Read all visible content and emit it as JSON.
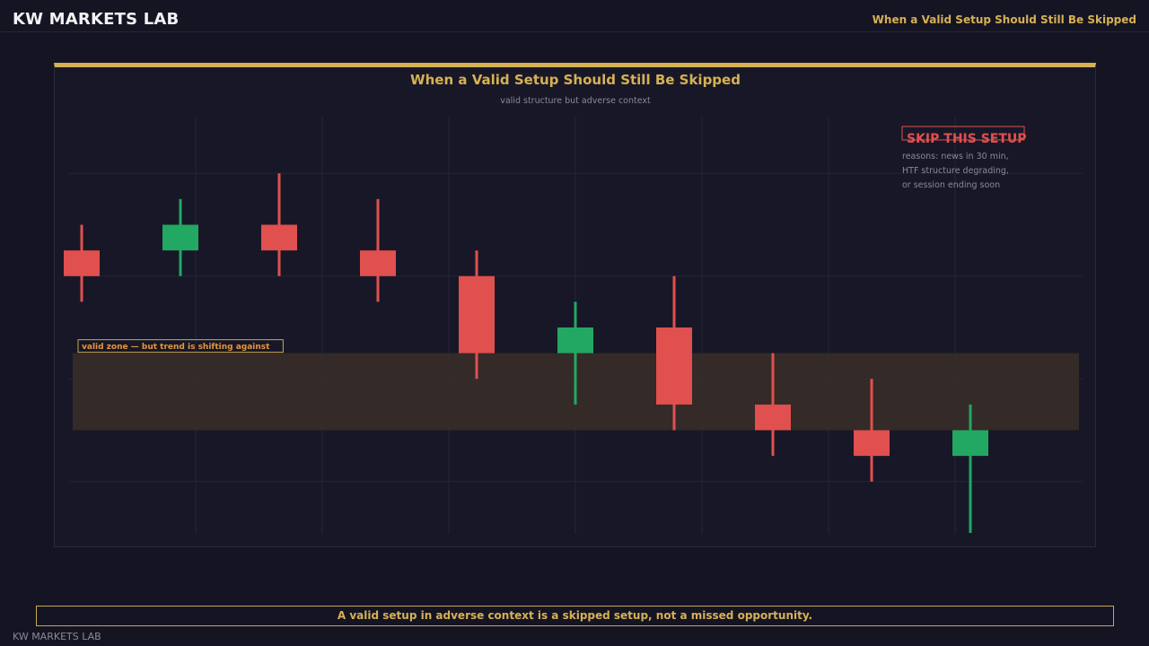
{
  "header": {
    "brand": "KW MARKETS LAB",
    "title": "When a Valid Setup Should Still Be Skipped"
  },
  "colors": {
    "accent": "#d6b154",
    "bull": "#22a862",
    "bear": "#e0504e",
    "zone_fill": "#3a2e28",
    "zone_label": "#e6953a",
    "skip": "#e0504e"
  },
  "chart_data": {
    "type": "candlestick",
    "title": "When a Valid Setup Should Still Be Skipped",
    "subtitle": "valid structure but adverse context",
    "ylim": [
      0,
      16
    ],
    "grid": true,
    "candles": [
      {
        "open": 11,
        "high": 12,
        "low": 9,
        "close": 10
      },
      {
        "open": 11,
        "high": 13,
        "low": 10,
        "close": 12
      },
      {
        "open": 12,
        "high": 14,
        "low": 10,
        "close": 11
      },
      {
        "open": 11,
        "high": 13,
        "low": 9,
        "close": 10
      },
      {
        "open": 10,
        "high": 11,
        "low": 6,
        "close": 7
      },
      {
        "open": 7,
        "high": 9,
        "low": 5,
        "close": 8
      },
      {
        "open": 8,
        "high": 10,
        "low": 4,
        "close": 5
      },
      {
        "open": 5,
        "high": 7,
        "low": 3,
        "close": 4
      },
      {
        "open": 4,
        "high": 6,
        "low": 2,
        "close": 3
      },
      {
        "open": 3,
        "high": 5,
        "low": 0,
        "close": 4
      }
    ],
    "zone": {
      "low": 4,
      "high": 7,
      "label": "valid zone — but trend is shifting against"
    },
    "callout": {
      "title": "SKIP THIS SETUP",
      "lines": [
        "reasons: news in 30 min,",
        "HTF structure degrading,",
        "or session ending soon"
      ]
    }
  },
  "footer": {
    "banner": "A valid setup in adverse context is a skipped setup, not a missed opportunity.",
    "brand": "KW MARKETS LAB"
  }
}
